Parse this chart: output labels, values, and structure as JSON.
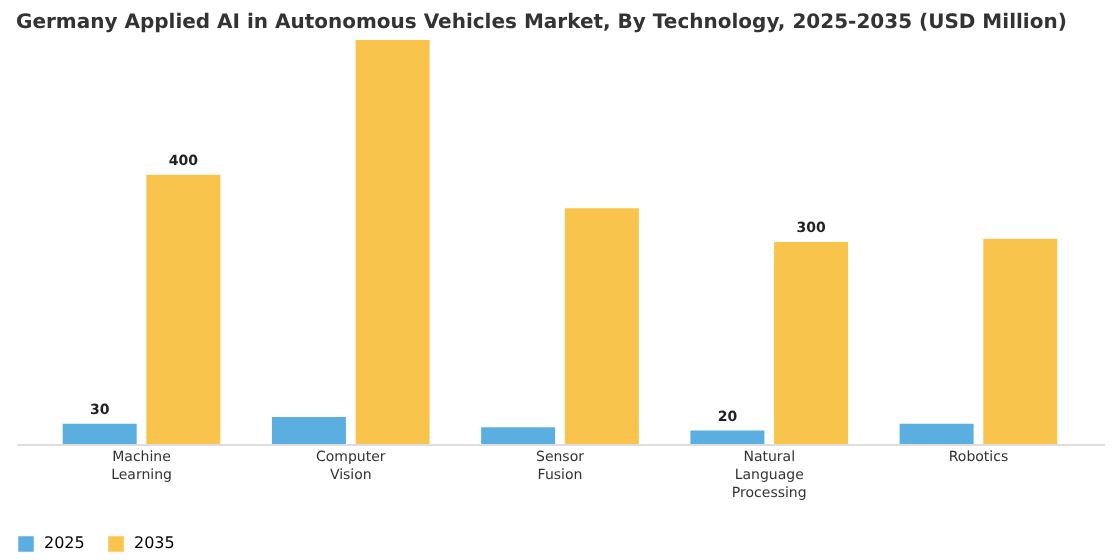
{
  "chart_data": {
    "type": "bar",
    "title": "Germany Applied AI in Autonomous Vehicles Market, By Technology, 2025-2035 (USD Million)",
    "categories": [
      "Machine Learning",
      "Computer Vision",
      "Sensor Fusion",
      "Natural Language Processing",
      "Robotics"
    ],
    "series": [
      {
        "name": "2025",
        "color": "#5aafe0",
        "values": [
          30,
          40,
          25,
          20,
          30
        ],
        "value_labels": [
          "30",
          null,
          null,
          "20",
          null
        ]
      },
      {
        "name": "2035",
        "color": "#f8c44c",
        "values": [
          400,
          600,
          350,
          300,
          305
        ],
        "value_labels": [
          "400",
          null,
          null,
          "300",
          null
        ]
      }
    ],
    "tick_labels": "x",
    "grid": false,
    "legend": "bottom"
  }
}
